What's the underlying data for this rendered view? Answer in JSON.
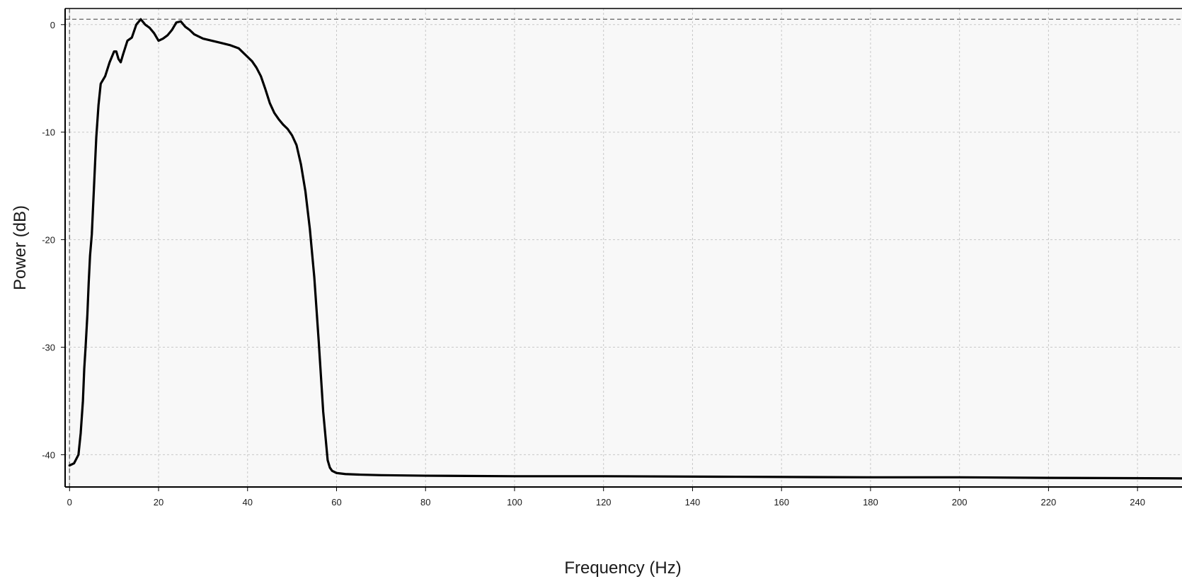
{
  "chart_data": {
    "type": "line",
    "title": "",
    "xlabel": "Frequency (Hz)",
    "ylabel": "Power (dB)",
    "xlim": [
      -1,
      250
    ],
    "ylim": [
      -43,
      1.5
    ],
    "grid": true,
    "x_ticks": [
      "0",
      "20",
      "40",
      "60",
      "80",
      "100",
      "120",
      "140",
      "160",
      "180",
      "200",
      "220",
      "240"
    ],
    "y_ticks": [
      "0",
      "-10",
      "-20",
      "-30",
      "-40"
    ],
    "reference_lines": {
      "x": 0,
      "y": 0.5
    },
    "colors": {
      "line": "#000000",
      "plot_background": "#f8f8f8",
      "grid": "#c8c8c8",
      "axis": "#000000"
    },
    "series": [
      {
        "x": [
          0,
          1,
          2,
          2.5,
          3,
          3.3,
          3.6,
          4,
          4.3,
          4.6,
          5,
          5.5,
          6,
          6.5,
          7,
          8,
          9,
          10,
          10.5,
          11,
          11.5,
          12,
          13,
          14,
          15,
          16,
          17,
          18,
          19,
          20,
          21,
          22,
          23,
          24,
          25,
          26,
          27,
          28,
          30,
          32,
          34,
          36,
          38,
          40,
          41,
          42,
          43,
          44,
          45,
          46,
          47,
          48,
          49,
          50,
          51,
          52,
          53,
          54,
          55,
          56,
          57,
          58,
          58.5,
          59,
          60,
          62,
          65,
          70,
          80,
          100,
          120,
          150,
          180,
          200,
          220,
          250
        ],
        "y": [
          -41,
          -40.8,
          -40,
          -38,
          -35,
          -32,
          -30,
          -27,
          -24,
          -21.5,
          -19.5,
          -15,
          -10.5,
          -7.5,
          -5.5,
          -4.8,
          -3.5,
          -2.5,
          -2.5,
          -3.2,
          -3.5,
          -2.8,
          -1.5,
          -1.2,
          0,
          0.5,
          0,
          -0.3,
          -0.8,
          -1.5,
          -1.3,
          -1,
          -0.5,
          0.2,
          0.3,
          -0.2,
          -0.5,
          -0.9,
          -1.3,
          -1.5,
          -1.7,
          -1.9,
          -2.2,
          -3,
          -3.4,
          -4,
          -4.8,
          -6,
          -7.3,
          -8.2,
          -8.8,
          -9.3,
          -9.7,
          -10.3,
          -11.2,
          -13,
          -15.5,
          -19,
          -23.5,
          -29.5,
          -36,
          -40.5,
          -41.2,
          -41.5,
          -41.7,
          -41.8,
          -41.85,
          -41.9,
          -41.95,
          -42,
          -42,
          -42.05,
          -42.1,
          -42.1,
          -42.15,
          -42.2
        ]
      }
    ]
  }
}
